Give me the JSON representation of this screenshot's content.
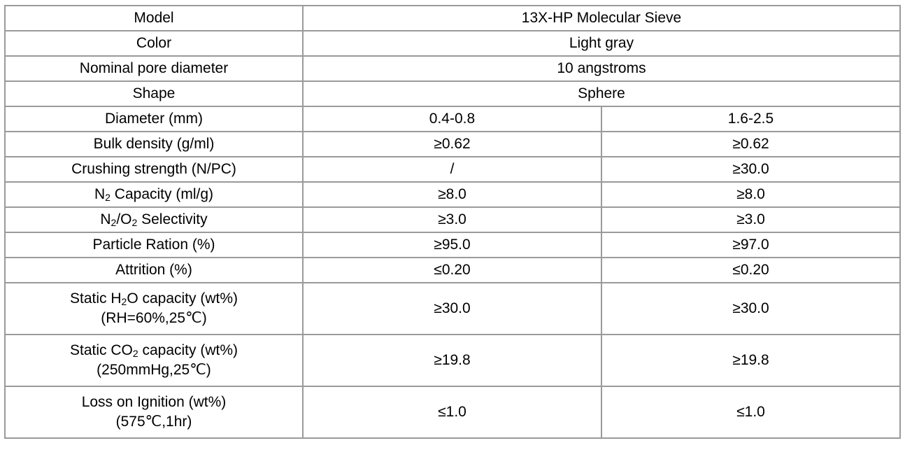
{
  "rows": [
    {
      "label": [
        [
          "Model"
        ]
      ],
      "span": "13X-HP Molecular Sieve"
    },
    {
      "label": [
        [
          "Color"
        ]
      ],
      "span": "Light gray"
    },
    {
      "label": [
        [
          "Nominal pore diameter"
        ]
      ],
      "span": "10 angstroms"
    },
    {
      "label": [
        [
          "Shape"
        ]
      ],
      "span": "Sphere"
    },
    {
      "label": [
        [
          "Diameter (mm)"
        ]
      ],
      "values": [
        "0.4-0.8",
        "1.6-2.5"
      ]
    },
    {
      "label": [
        [
          "Bulk density (g/ml)"
        ]
      ],
      "values": [
        "≥0.62",
        "≥0.62"
      ]
    },
    {
      "label": [
        [
          "Crushing strength (N/PC)"
        ]
      ],
      "values": [
        "/",
        "≥30.0"
      ]
    },
    {
      "label": [
        [
          "N"
        ],
        [
          "2",
          "sub"
        ],
        [
          " Capacity (ml/g)"
        ]
      ],
      "values": [
        "≥8.0",
        "≥8.0"
      ]
    },
    {
      "label": [
        [
          "N"
        ],
        [
          "2",
          "sub"
        ],
        [
          "/O"
        ],
        [
          "2",
          "sub"
        ],
        [
          " Selectivity"
        ]
      ],
      "values": [
        "≥3.0",
        "≥3.0"
      ]
    },
    {
      "label": [
        [
          "Particle Ration (%)"
        ]
      ],
      "values": [
        "≥95.0",
        "≥97.0"
      ]
    },
    {
      "label": [
        [
          "Attrition (%)"
        ]
      ],
      "values": [
        "≤0.20",
        "≤0.20"
      ]
    },
    {
      "label": [
        [
          "Static H"
        ],
        [
          "2",
          "sub"
        ],
        [
          "O capacity (wt%)"
        ],
        [
          "br"
        ],
        [
          "(RH=60%,25℃)"
        ]
      ],
      "values": [
        "≥30.0",
        "≥30.0"
      ]
    },
    {
      "label": [
        [
          "Static CO"
        ],
        [
          "2",
          "sub"
        ],
        [
          " capacity (wt%)"
        ],
        [
          "br"
        ],
        [
          "(250mmHg,25℃)"
        ]
      ],
      "values": [
        "≥19.8",
        "≥19.8"
      ]
    },
    {
      "label": [
        [
          "Loss on Ignition (wt%)"
        ],
        [
          "br"
        ],
        [
          "(575℃,1hr)"
        ]
      ],
      "values": [
        "≤1.0",
        "≤1.0"
      ]
    }
  ]
}
